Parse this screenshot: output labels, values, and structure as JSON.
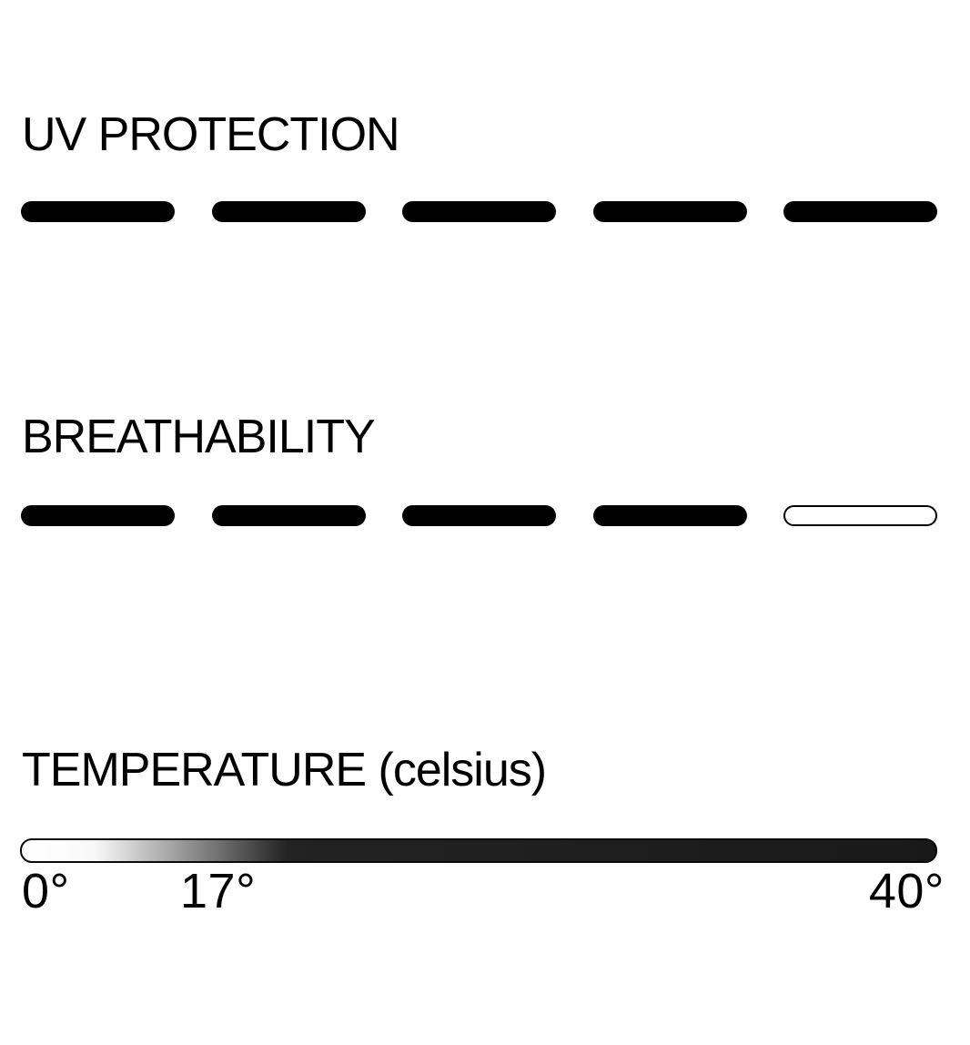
{
  "colors": {
    "background": "#ffffff",
    "ink": "#000000",
    "bar_fill": "#000000",
    "bar_empty_fill": "#ffffff",
    "bar_outline": "#000000",
    "gradient_start": "#ffffff",
    "gradient_end": "#191919"
  },
  "sections": {
    "uv_protection": {
      "title": "UV PROTECTION",
      "rating": 5,
      "max": 5
    },
    "breathability": {
      "title": "BREATHABILITY",
      "rating": 4,
      "max": 5
    },
    "temperature": {
      "title": "TEMPERATURE (celsius)",
      "labels": {
        "min": "0°",
        "mid": "17°",
        "max": "40°"
      }
    }
  },
  "chart_data": [
    {
      "type": "bar",
      "title": "UV PROTECTION",
      "categories": [
        "segment 1",
        "segment 2",
        "segment 3",
        "segment 4",
        "segment 5"
      ],
      "values": [
        1,
        1,
        1,
        1,
        1
      ],
      "rating": 5,
      "rating_max": 5,
      "legend_position": "none"
    },
    {
      "type": "bar",
      "title": "BREATHABILITY",
      "categories": [
        "segment 1",
        "segment 2",
        "segment 3",
        "segment 4",
        "segment 5"
      ],
      "values": [
        1,
        1,
        1,
        1,
        0
      ],
      "rating": 4,
      "rating_max": 5,
      "legend_position": "none"
    },
    {
      "type": "heatmap",
      "title": "TEMPERATURE (celsius)",
      "orientation": "horizontal",
      "range": [
        0,
        40
      ],
      "tick_labels": [
        "0°",
        "17°",
        "40°"
      ],
      "tick_values": [
        0,
        17,
        40
      ],
      "gradient": [
        "#ffffff",
        "#000000"
      ]
    }
  ]
}
